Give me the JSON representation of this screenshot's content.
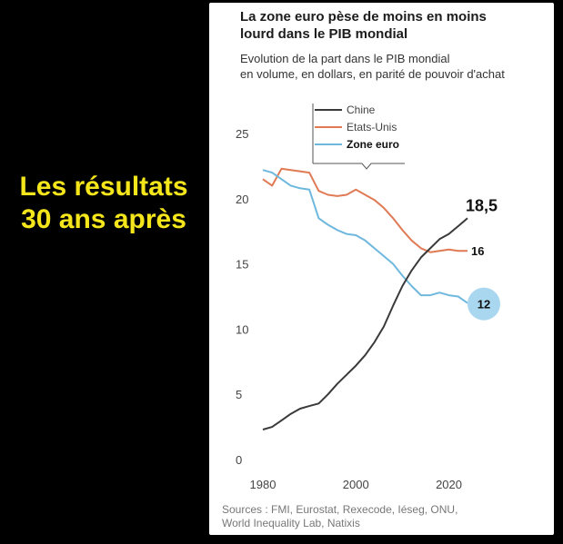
{
  "side_text": [
    "Les résultats",
    "30 ans après"
  ],
  "title_lines": [
    "La zone euro pèse de moins en moins",
    "lourd dans le PIB mondial"
  ],
  "subtitle_lines": [
    "Evolution de la part dans le PIB mondial",
    "en volume, en dollars, en parité de pouvoir d'achat"
  ],
  "sources_lines": [
    "Sources : FMI, Eurostat, Rexecode, Iéseg, ONU,",
    "World Inequality Lab, Natixis"
  ],
  "colors": {
    "chine": "#3a3a3a",
    "etats_unis": "#e07a55",
    "zone_euro": "#6fb8dd",
    "zone_euro_bubble": "#a9d7f0",
    "side_text": "#f5e61c"
  },
  "chart_data": {
    "type": "line",
    "xlim": [
      1980,
      2024
    ],
    "ylim": [
      0,
      25
    ],
    "x_ticks": [
      1980,
      2000,
      2020
    ],
    "y_ticks": [
      0,
      5,
      10,
      15,
      20,
      25
    ],
    "grid": false,
    "legend_position": "top-center",
    "series": [
      {
        "name": "Chine",
        "key": "chine",
        "end_label": "18,5",
        "x": [
          1980,
          1982,
          1984,
          1986,
          1988,
          1990,
          1992,
          1994,
          1996,
          1998,
          2000,
          2002,
          2004,
          2006,
          2008,
          2010,
          2012,
          2014,
          2016,
          2018,
          2020,
          2022,
          2024
        ],
        "y": [
          2.3,
          2.5,
          3.0,
          3.5,
          3.9,
          4.1,
          4.3,
          5.0,
          5.8,
          6.5,
          7.2,
          8.0,
          9.0,
          10.2,
          11.8,
          13.3,
          14.5,
          15.5,
          16.2,
          16.9,
          17.3,
          17.9,
          18.5
        ]
      },
      {
        "name": "Etats-Unis",
        "key": "etats_unis",
        "end_label": "16",
        "x": [
          1980,
          1982,
          1984,
          1986,
          1988,
          1990,
          1992,
          1994,
          1996,
          1998,
          2000,
          2002,
          2004,
          2006,
          2008,
          2010,
          2012,
          2014,
          2016,
          2018,
          2020,
          2022,
          2024
        ],
        "y": [
          21.5,
          21.0,
          22.3,
          22.2,
          22.1,
          22.0,
          20.6,
          20.3,
          20.2,
          20.3,
          20.7,
          20.3,
          19.9,
          19.3,
          18.5,
          17.6,
          16.8,
          16.2,
          15.9,
          16.0,
          16.1,
          16.0,
          16.0
        ]
      },
      {
        "name": "Zone euro",
        "key": "zone_euro",
        "bold": true,
        "end_label": "12",
        "x": [
          1980,
          1982,
          1984,
          1986,
          1988,
          1990,
          1992,
          1994,
          1996,
          1998,
          2000,
          2002,
          2004,
          2006,
          2008,
          2010,
          2012,
          2014,
          2016,
          2018,
          2020,
          2022,
          2024
        ],
        "y": [
          22.2,
          22.0,
          21.5,
          21.0,
          20.8,
          20.7,
          18.5,
          18.0,
          17.6,
          17.3,
          17.2,
          16.8,
          16.2,
          15.6,
          15.0,
          14.1,
          13.3,
          12.6,
          12.6,
          12.8,
          12.6,
          12.5,
          12.0
        ]
      }
    ]
  }
}
